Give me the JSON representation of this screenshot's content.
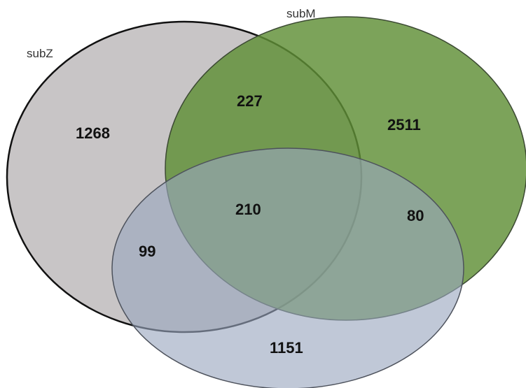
{
  "sets": [
    {
      "id": "subZ",
      "label": "subZ",
      "fill": "#c7c4c5",
      "stroke": "#1a1a1a"
    },
    {
      "id": "subM",
      "label": "subM",
      "fill": "#6f9a4a",
      "stroke": "#3a4a30"
    },
    {
      "id": "third",
      "label": "",
      "fill": "#aab4c8",
      "stroke": "#4a4f5a"
    }
  ],
  "regions": {
    "subZ_only": "1268",
    "subZ_subM": "227",
    "subM_only": "2511",
    "all_three": "210",
    "subZ_third": "99",
    "subM_third": "80",
    "third_only": "1151"
  }
}
